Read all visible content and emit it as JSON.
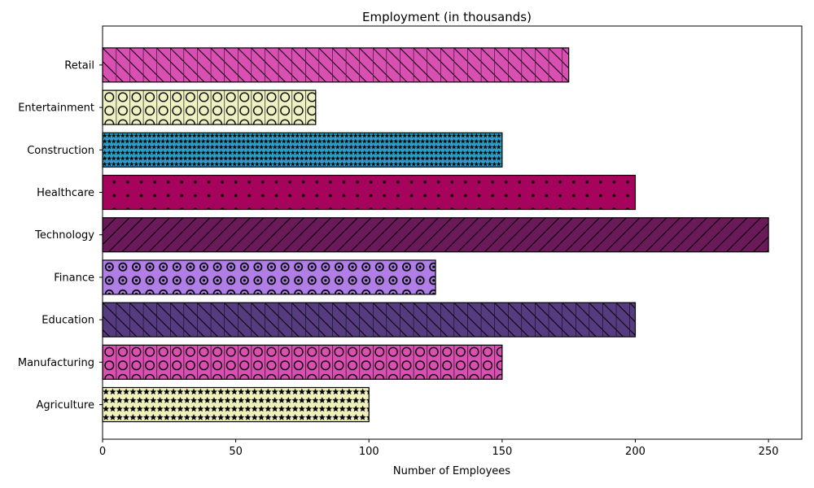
{
  "chart_data": {
    "type": "bar",
    "orientation": "horizontal",
    "title": "Employment (in thousands)",
    "xlabel": "Number of Employees",
    "ylabel": "",
    "xlim": [
      0,
      262.5
    ],
    "xticks": [
      0,
      50,
      100,
      150,
      200,
      250
    ],
    "grid": false,
    "legend": "none",
    "categories": [
      "Agriculture",
      "Manufacturing",
      "Education",
      "Finance",
      "Technology",
      "Healthcare",
      "Construction",
      "Entertainment",
      "Retail"
    ],
    "values": [
      100,
      150,
      200,
      125,
      250,
      200,
      150,
      80,
      175
    ],
    "bar_colors": [
      "#f0f0bc",
      "#d94fb2",
      "#573b80",
      "#b07ee6",
      "#6b1a59",
      "#a6035c",
      "#2e9ec8",
      "#eef2c2",
      "#d94fb2"
    ],
    "hatches": [
      "stars",
      "circles",
      "backslash",
      "rings",
      "slash",
      "dots",
      "stars-small",
      "circles",
      "backslash"
    ]
  }
}
